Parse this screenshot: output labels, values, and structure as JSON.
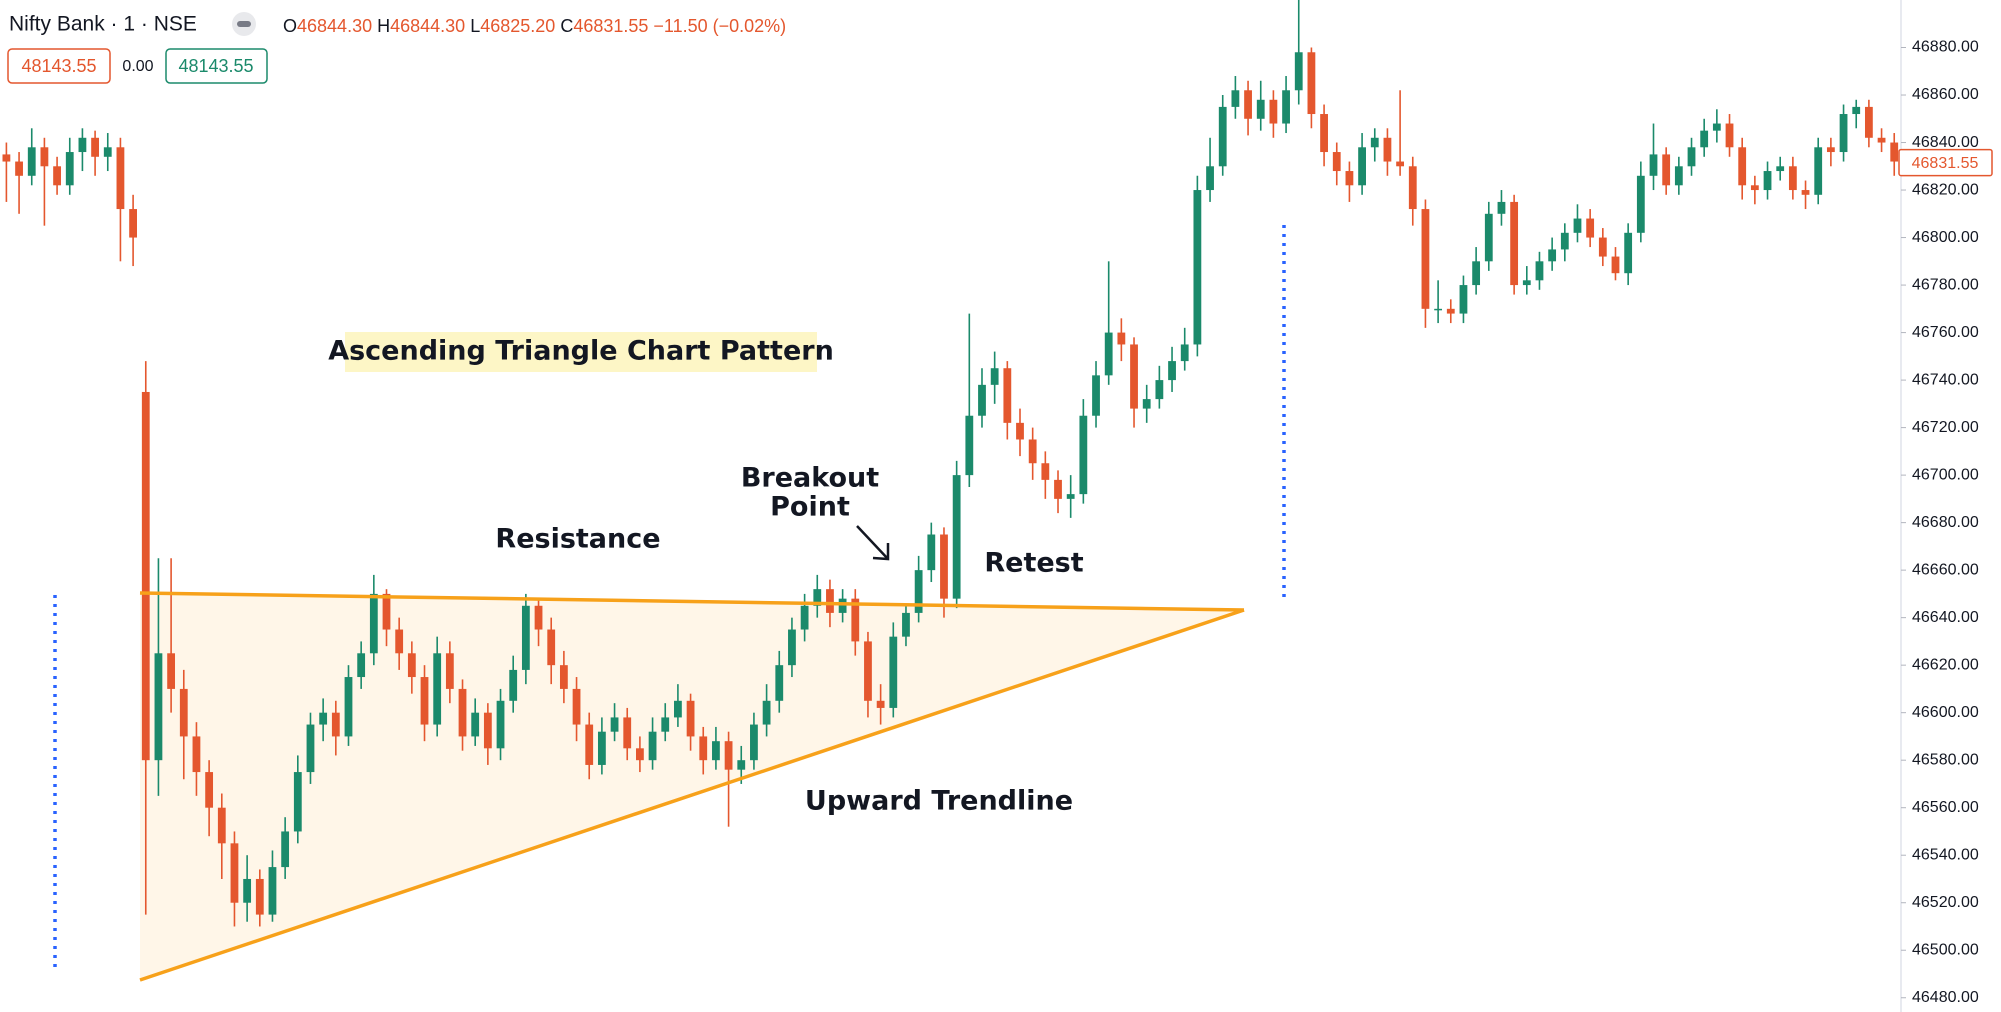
{
  "chart_data": {
    "type": "candlestick",
    "legend": {
      "symbol": "Nifty Bank · 1 · NSE",
      "o_label": "O",
      "open": "46844.30",
      "h_label": "H",
      "high": "46844.30",
      "l_label": "L",
      "low": "46825.20",
      "c_label": "C",
      "close": "46831.55",
      "change": "−11.50 (−0.02%)",
      "sell": "48143.55",
      "spread": "0.00",
      "buy": "48143.55"
    },
    "annotations": {
      "title": "Ascending Triangle Chart Pattern",
      "resistance": "Resistance",
      "breakout_1": "Breakout",
      "breakout_2": "Point",
      "retest": "Retest",
      "trendline": "Upward Trendline"
    },
    "up_color": "#1b8a6b",
    "down_color": "#e4572e",
    "ylim": [
      46474,
      46900
    ],
    "yticks": [
      {
        "value": 46480,
        "label": "46480.00"
      },
      {
        "value": 46500,
        "label": "46500.00"
      },
      {
        "value": 46520,
        "label": "46520.00"
      },
      {
        "value": 46540,
        "label": "46540.00"
      },
      {
        "value": 46560,
        "label": "46560.00"
      },
      {
        "value": 46580,
        "label": "46580.00"
      },
      {
        "value": 46600,
        "label": "46600.00"
      },
      {
        "value": 46620,
        "label": "46620.00"
      },
      {
        "value": 46640,
        "label": "46640.00"
      },
      {
        "value": 46660,
        "label": "46660.00"
      },
      {
        "value": 46680,
        "label": "46680.00"
      },
      {
        "value": 46700,
        "label": "46700.00"
      },
      {
        "value": 46720,
        "label": "46720.00"
      },
      {
        "value": 46740,
        "label": "46740.00"
      },
      {
        "value": 46760,
        "label": "46760.00"
      },
      {
        "value": 46780,
        "label": "46780.00"
      },
      {
        "value": 46800,
        "label": "46800.00"
      },
      {
        "value": 46820,
        "label": "46820.00"
      },
      {
        "value": 46840,
        "label": "46840.00"
      },
      {
        "value": 46860,
        "label": "46860.00"
      },
      {
        "value": 46880,
        "label": "46880.00"
      }
    ],
    "last_price": {
      "value": 46831.55,
      "label": "46831.55"
    },
    "candles": [
      [
        46835,
        46840,
        46815,
        46832
      ],
      [
        46832,
        46836,
        46810,
        46826
      ],
      [
        46826,
        46846,
        46822,
        46838
      ],
      [
        46838,
        46842,
        46805,
        46830
      ],
      [
        46830,
        46834,
        46818,
        46822
      ],
      [
        46822,
        46842,
        46818,
        46836
      ],
      [
        46836,
        46846,
        46828,
        46842
      ],
      [
        46842,
        46845,
        46826,
        46834
      ],
      [
        46834,
        46844,
        46828,
        46838
      ],
      [
        46838,
        46842,
        46790,
        46812
      ],
      [
        46812,
        46818,
        46788,
        46800
      ],
      [
        46735,
        46748,
        46515,
        46580
      ],
      [
        46580,
        46665,
        46565,
        46625
      ],
      [
        46625,
        46665,
        46600,
        46610
      ],
      [
        46610,
        46618,
        46572,
        46590
      ],
      [
        46590,
        46596,
        46565,
        46575
      ],
      [
        46575,
        46580,
        46548,
        46560
      ],
      [
        46560,
        46566,
        46530,
        46545
      ],
      [
        46545,
        46550,
        46510,
        46520
      ],
      [
        46520,
        46540,
        46512,
        46530
      ],
      [
        46530,
        46534,
        46510,
        46515
      ],
      [
        46515,
        46542,
        46512,
        46535
      ],
      [
        46535,
        46556,
        46530,
        46550
      ],
      [
        46550,
        46582,
        46545,
        46575
      ],
      [
        46575,
        46600,
        46570,
        46595
      ],
      [
        46595,
        46606,
        46588,
        46600
      ],
      [
        46600,
        46605,
        46582,
        46590
      ],
      [
        46590,
        46620,
        46586,
        46615
      ],
      [
        46615,
        46630,
        46610,
        46625
      ],
      [
        46625,
        46658,
        46620,
        46650
      ],
      [
        46650,
        46652,
        46628,
        46635
      ],
      [
        46635,
        46640,
        46618,
        46625
      ],
      [
        46625,
        46630,
        46608,
        46615
      ],
      [
        46615,
        46620,
        46588,
        46595
      ],
      [
        46595,
        46632,
        46590,
        46625
      ],
      [
        46625,
        46630,
        46604,
        46610
      ],
      [
        46610,
        46614,
        46584,
        46590
      ],
      [
        46590,
        46606,
        46586,
        46600
      ],
      [
        46600,
        46604,
        46578,
        46585
      ],
      [
        46585,
        46610,
        46580,
        46605
      ],
      [
        46605,
        46624,
        46600,
        46618
      ],
      [
        46618,
        46650,
        46612,
        46645
      ],
      [
        46645,
        46648,
        46628,
        46635
      ],
      [
        46635,
        46640,
        46612,
        46620
      ],
      [
        46620,
        46626,
        46604,
        46610
      ],
      [
        46610,
        46615,
        46588,
        46595
      ],
      [
        46595,
        46600,
        46572,
        46578
      ],
      [
        46578,
        46598,
        46574,
        46592
      ],
      [
        46592,
        46604,
        46588,
        46598
      ],
      [
        46598,
        46602,
        46580,
        46585
      ],
      [
        46585,
        46590,
        46575,
        46580
      ],
      [
        46580,
        46598,
        46576,
        46592
      ],
      [
        46592,
        46604,
        46588,
        46598
      ],
      [
        46598,
        46612,
        46594,
        46605
      ],
      [
        46605,
        46608,
        46584,
        46590
      ],
      [
        46590,
        46594,
        46574,
        46580
      ],
      [
        46580,
        46594,
        46576,
        46588
      ],
      [
        46588,
        46592,
        46552,
        46576
      ],
      [
        46576,
        46586,
        46570,
        46580
      ],
      [
        46580,
        46600,
        46576,
        46595
      ],
      [
        46595,
        46612,
        46590,
        46605
      ],
      [
        46605,
        46626,
        46600,
        46620
      ],
      [
        46620,
        46640,
        46615,
        46635
      ],
      [
        46635,
        46650,
        46630,
        46645
      ],
      [
        46645,
        46658,
        46640,
        46652
      ],
      [
        46652,
        46656,
        46636,
        46642
      ],
      [
        46642,
        46652,
        46638,
        46648
      ],
      [
        46648,
        46652,
        46624,
        46630
      ],
      [
        46630,
        46634,
        46598,
        46605
      ],
      [
        46605,
        46612,
        46595,
        46602
      ],
      [
        46602,
        46638,
        46598,
        46632
      ],
      [
        46632,
        46646,
        46628,
        46642
      ],
      [
        46642,
        46666,
        46638,
        46660
      ],
      [
        46660,
        46680,
        46655,
        46675
      ],
      [
        46675,
        46678,
        46640,
        46648
      ],
      [
        46648,
        46706,
        46644,
        46700
      ],
      [
        46700,
        46768,
        46695,
        46725
      ],
      [
        46725,
        46745,
        46720,
        46738
      ],
      [
        46738,
        46752,
        46730,
        46745
      ],
      [
        46745,
        46748,
        46715,
        46722
      ],
      [
        46722,
        46728,
        46708,
        46715
      ],
      [
        46715,
        46720,
        46698,
        46705
      ],
      [
        46705,
        46710,
        46690,
        46698
      ],
      [
        46698,
        46702,
        46684,
        46690
      ],
      [
        46690,
        46700,
        46682,
        46692
      ],
      [
        46692,
        46732,
        46688,
        46725
      ],
      [
        46725,
        46748,
        46720,
        46742
      ],
      [
        46742,
        46790,
        46738,
        46760
      ],
      [
        46760,
        46766,
        46748,
        46755
      ],
      [
        46755,
        46758,
        46720,
        46728
      ],
      [
        46728,
        46738,
        46722,
        46732
      ],
      [
        46732,
        46746,
        46728,
        46740
      ],
      [
        46740,
        46754,
        46735,
        46748
      ],
      [
        46748,
        46762,
        46744,
        46755
      ],
      [
        46755,
        46826,
        46750,
        46820
      ],
      [
        46820,
        46842,
        46815,
        46830
      ],
      [
        46830,
        46860,
        46826,
        46855
      ],
      [
        46855,
        46868,
        46850,
        46862
      ],
      [
        46862,
        46866,
        46843,
        46850
      ],
      [
        46850,
        46866,
        46845,
        46858
      ],
      [
        46858,
        46862,
        46842,
        46848
      ],
      [
        46848,
        46868,
        46844,
        46862
      ],
      [
        46862,
        46900,
        46856,
        46878
      ],
      [
        46878,
        46880,
        46846,
        46852
      ],
      [
        46852,
        46856,
        46830,
        46836
      ],
      [
        46836,
        46840,
        46822,
        46828
      ],
      [
        46828,
        46832,
        46815,
        46822
      ],
      [
        46822,
        46844,
        46818,
        46838
      ],
      [
        46838,
        46846,
        46832,
        46842
      ],
      [
        46842,
        46846,
        46826,
        46832
      ],
      [
        46832,
        46862,
        46826,
        46830
      ],
      [
        46830,
        46834,
        46805,
        46812
      ],
      [
        46812,
        46816,
        46762,
        46770
      ],
      [
        46770,
        46782,
        46764,
        46770
      ],
      [
        46770,
        46774,
        46764,
        46768
      ],
      [
        46768,
        46784,
        46764,
        46780
      ],
      [
        46780,
        46796,
        46776,
        46790
      ],
      [
        46790,
        46815,
        46786,
        46810
      ],
      [
        46810,
        46820,
        46805,
        46815
      ],
      [
        46815,
        46818,
        46776,
        46780
      ],
      [
        46780,
        46788,
        46776,
        46782
      ],
      [
        46782,
        46794,
        46778,
        46790
      ],
      [
        46790,
        46800,
        46786,
        46795
      ],
      [
        46795,
        46806,
        46790,
        46802
      ],
      [
        46802,
        46814,
        46798,
        46808
      ],
      [
        46808,
        46812,
        46796,
        46800
      ],
      [
        46800,
        46804,
        46788,
        46792
      ],
      [
        46792,
        46796,
        46782,
        46785
      ],
      [
        46785,
        46806,
        46780,
        46802
      ],
      [
        46802,
        46832,
        46798,
        46826
      ],
      [
        46826,
        46848,
        46820,
        46835
      ],
      [
        46835,
        46838,
        46818,
        46822
      ],
      [
        46822,
        46834,
        46818,
        46830
      ],
      [
        46830,
        46842,
        46826,
        46838
      ],
      [
        46838,
        46850,
        46834,
        46845
      ],
      [
        46845,
        46854,
        46840,
        46848
      ],
      [
        46848,
        46852,
        46834,
        46838
      ],
      [
        46838,
        46842,
        46816,
        46822
      ],
      [
        46822,
        46826,
        46814,
        46820
      ],
      [
        46820,
        46832,
        46816,
        46828
      ],
      [
        46828,
        46834,
        46824,
        46830
      ],
      [
        46830,
        46834,
        46816,
        46820
      ],
      [
        46820,
        46824,
        46812,
        46818
      ],
      [
        46818,
        46842,
        46814,
        46838
      ],
      [
        46838,
        46842,
        46830,
        46836
      ],
      [
        46836,
        46856,
        46832,
        46852
      ],
      [
        46852,
        46858,
        46846,
        46855
      ],
      [
        46855,
        46858,
        46838,
        46842
      ],
      [
        46842,
        46846,
        46836,
        46840
      ],
      [
        46840,
        46844,
        46826,
        46832
      ]
    ]
  }
}
